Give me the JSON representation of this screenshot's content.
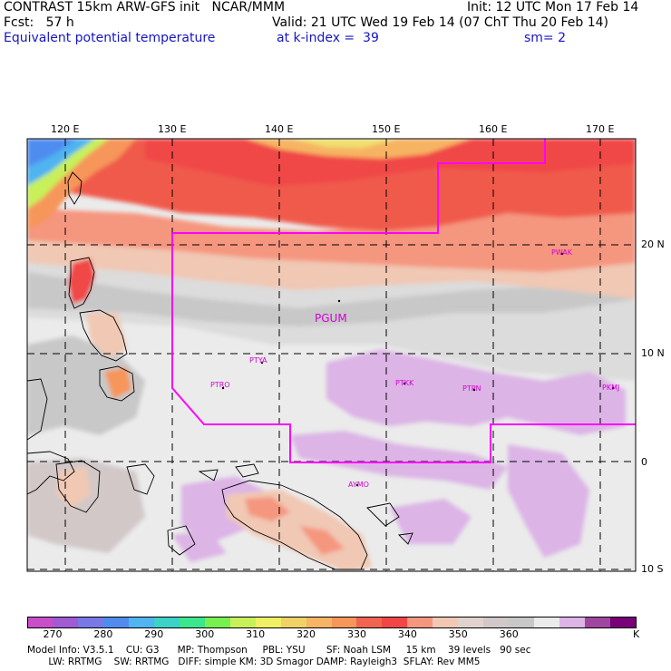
{
  "header": {
    "left_line1": "CONTRAST 15km ARW-GFS init   NCAR/MMM",
    "left_line2": "Fcst:   57 h",
    "left_line3": "Equivalent potential temperature",
    "init": "Init: 12 UTC Mon 17 Feb 14",
    "valid": "Valid: 21 UTC Wed 19 Feb 14 (07 ChT Thu 20 Feb 14)",
    "k_index": "at k-index =  39",
    "sm": "sm= 2"
  },
  "map": {
    "lon_labels": [
      "120 E",
      "130 E",
      "140 E",
      "150 E",
      "160 E",
      "170 E"
    ],
    "lat_labels": [
      "20 N",
      "10 N",
      "0",
      "10 S"
    ],
    "stations": [
      "PGUM",
      "PTYA",
      "PTRO",
      "PTKK",
      "PTPN",
      "PKMJ",
      "PWAK",
      "AYMO"
    ],
    "station_color": "#d400d4"
  },
  "colorbar": {
    "colors": [
      "#c84fc8",
      "#a05ad2",
      "#7878e6",
      "#508cf0",
      "#50b4f0",
      "#3cd2c8",
      "#3ce68c",
      "#78f050",
      "#c8f05a",
      "#f0f064",
      "#f0d264",
      "#f6b464",
      "#f6965a",
      "#f06450",
      "#f04646",
      "#f5967f",
      "#f0c8b4",
      "#e1d2cd",
      "#d2c8c8",
      "#c8c8c8",
      "#ebebeb",
      "#dcb4e6",
      "#a046a0",
      "#780078"
    ],
    "labels": [
      "270",
      "280",
      "290",
      "300",
      "310",
      "320",
      "330",
      "340",
      "350",
      "360"
    ],
    "unit": "K"
  },
  "footer": {
    "line1": "Model Info: V3.5.1    CU: G3      MP: Thompson     PBL: YSU       SF: Noah LSM     15 km    39 levels   90 sec",
    "line2": "       LW: RRTMG    SW: RRTMG   DIFF: simple KM: 3D Smagor DAMP: Rayleigh3  SFLAY: Rev MM5"
  }
}
